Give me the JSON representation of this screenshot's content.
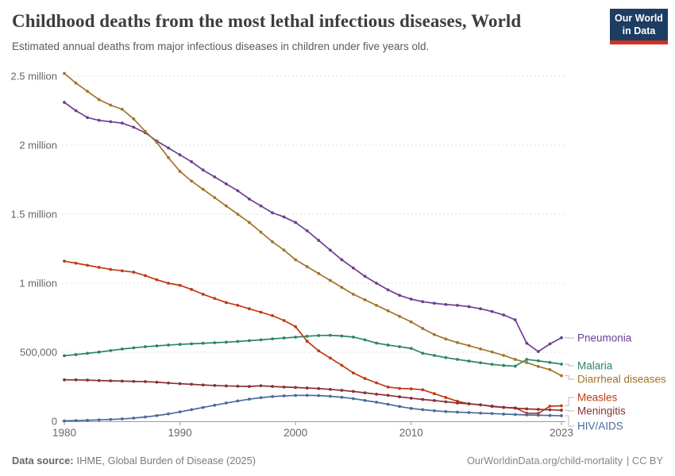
{
  "header": {
    "title": "Childhood deaths from the most lethal infectious diseases, World",
    "subtitle": "Estimated annual deaths from major infectious diseases in children under five years old.",
    "logo": {
      "line1": "Our World",
      "line2": "in Data"
    }
  },
  "footer": {
    "source_label": "Data source:",
    "source_text": "IHME, Global Burden of Disease (2025)",
    "link_text": "OurWorldinData.org/child-mortality",
    "license": "| CC BY"
  },
  "chart_data": {
    "type": "line",
    "title": "Childhood deaths from the most lethal infectious diseases, World",
    "subtitle": "Estimated annual deaths from major infectious diseases in children under five years old.",
    "xlabel": "",
    "ylabel": "",
    "grid": "horizontal-dashed",
    "legend_position": "right-of-line-ends",
    "ylim": [
      0,
      2600000
    ],
    "years": [
      1980,
      1981,
      1982,
      1983,
      1984,
      1985,
      1986,
      1987,
      1988,
      1989,
      1990,
      1991,
      1992,
      1993,
      1994,
      1995,
      1996,
      1997,
      1998,
      1999,
      2000,
      2001,
      2002,
      2003,
      2004,
      2005,
      2006,
      2007,
      2008,
      2009,
      2010,
      2011,
      2012,
      2013,
      2014,
      2015,
      2016,
      2017,
      2018,
      2019,
      2020,
      2021,
      2022,
      2023
    ],
    "x_ticks": [
      {
        "year": 1980,
        "label": "1980"
      },
      {
        "year": 1990,
        "label": "1990"
      },
      {
        "year": 2000,
        "label": "2000"
      },
      {
        "year": 2010,
        "label": "2010"
      },
      {
        "year": 2023,
        "label": "2023"
      }
    ],
    "y_ticks": [
      {
        "value": 0,
        "label": "0"
      },
      {
        "value": 500000,
        "label": "500,000"
      },
      {
        "value": 1000000,
        "label": "1 million"
      },
      {
        "value": 1500000,
        "label": "1.5 million"
      },
      {
        "value": 2000000,
        "label": "2 million"
      },
      {
        "value": 2500000,
        "label": "2.5 million"
      }
    ],
    "series": [
      {
        "name": "Pneumonia",
        "color": "#6D3E91",
        "values": [
          2310000,
          2250000,
          2200000,
          2180000,
          2170000,
          2160000,
          2130000,
          2090000,
          2030000,
          1980000,
          1930000,
          1880000,
          1820000,
          1770000,
          1720000,
          1670000,
          1610000,
          1560000,
          1510000,
          1480000,
          1440000,
          1380000,
          1310000,
          1240000,
          1170000,
          1110000,
          1050000,
          1000000,
          952000,
          912000,
          885000,
          866000,
          855000,
          846000,
          840000,
          830000,
          815000,
          795000,
          770000,
          735000,
          565000,
          505000,
          560000,
          605000
        ]
      },
      {
        "name": "Malaria",
        "color": "#2C8465",
        "values": [
          475000,
          483000,
          492000,
          501000,
          512000,
          523000,
          532000,
          540000,
          546000,
          552000,
          557000,
          561000,
          565000,
          569000,
          573000,
          578000,
          584000,
          590000,
          597000,
          603000,
          609000,
          616000,
          621000,
          623000,
          618000,
          610000,
          590000,
          566000,
          552000,
          540000,
          528000,
          493000,
          477000,
          461000,
          448000,
          436000,
          424000,
          412000,
          404000,
          399000,
          448000,
          438000,
          426000,
          414000
        ]
      },
      {
        "name": "Diarrheal diseases",
        "color": "#A0752D",
        "values": [
          2520000,
          2450000,
          2390000,
          2330000,
          2290000,
          2260000,
          2190000,
          2100000,
          2020000,
          1910000,
          1810000,
          1740000,
          1680000,
          1620000,
          1560000,
          1500000,
          1440000,
          1370000,
          1300000,
          1240000,
          1170000,
          1120000,
          1070000,
          1020000,
          970000,
          920000,
          880000,
          840000,
          800000,
          760000,
          720000,
          672000,
          628000,
          596000,
          570000,
          548000,
          524000,
          502000,
          477000,
          448000,
          425000,
          397000,
          374000,
          330000
        ]
      },
      {
        "name": "Measles",
        "color": "#C03A16",
        "values": [
          1160000,
          1145000,
          1130000,
          1115000,
          1100000,
          1090000,
          1080000,
          1055000,
          1025000,
          1000000,
          985000,
          955000,
          920000,
          890000,
          860000,
          840000,
          815000,
          790000,
          765000,
          730000,
          685000,
          580000,
          510000,
          458000,
          405000,
          350000,
          310000,
          278000,
          248000,
          238000,
          235000,
          228000,
          200000,
          172000,
          145000,
          127000,
          119000,
          107000,
          100000,
          97000,
          58000,
          57000,
          109000,
          112000
        ]
      },
      {
        "name": "Meningitis",
        "color": "#883039",
        "values": [
          300000,
          300000,
          298000,
          295000,
          293000,
          291000,
          289000,
          287000,
          283000,
          277000,
          272000,
          268000,
          263000,
          259000,
          256000,
          254000,
          252000,
          257000,
          252000,
          248000,
          245000,
          241000,
          237000,
          231000,
          224000,
          216000,
          206000,
          196000,
          188000,
          177000,
          167000,
          158000,
          150000,
          141000,
          132000,
          126000,
          119000,
          110000,
          101000,
          95000,
          90000,
          86000,
          83000,
          80000
        ]
      },
      {
        "name": "HIV/AIDS",
        "color": "#4C6A9C",
        "values": [
          3000,
          5000,
          7000,
          10000,
          13000,
          17000,
          23000,
          31000,
          41000,
          53000,
          68000,
          84000,
          100000,
          116000,
          132000,
          147000,
          160000,
          171000,
          179000,
          184000,
          187000,
          188000,
          186000,
          181000,
          174000,
          164000,
          151000,
          138000,
          123000,
          107000,
          93000,
          84000,
          76000,
          70000,
          66000,
          63000,
          59000,
          56000,
          52000,
          49000,
          46000,
          44000,
          42000,
          40000
        ]
      }
    ]
  }
}
